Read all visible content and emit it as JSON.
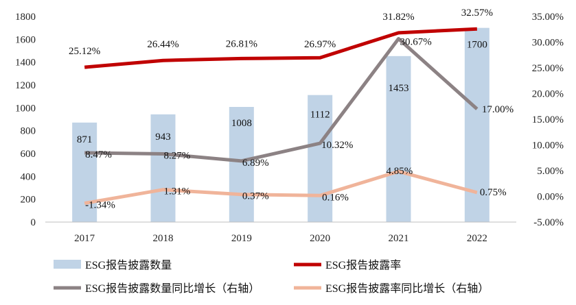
{
  "chart_data": {
    "type": "bar",
    "categories": [
      "2017",
      "2018",
      "2019",
      "2020",
      "2021",
      "2022"
    ],
    "series": [
      {
        "name": "ESG报告披露数量",
        "type": "bar",
        "axis": "left",
        "values": [
          871,
          943,
          1008,
          1112,
          1453,
          1700
        ],
        "labels": [
          "871",
          "943",
          "1008",
          "1112",
          "1453",
          "1700"
        ],
        "color": "#c0d3e6"
      },
      {
        "name": "ESG报告披露率",
        "type": "line",
        "axis": "right",
        "values": [
          25.12,
          26.44,
          26.81,
          26.97,
          31.82,
          32.57
        ],
        "labels": [
          "25.12%",
          "26.44%",
          "26.81%",
          "26.97%",
          "31.82%",
          "32.57%"
        ],
        "color": "#c00000"
      },
      {
        "name": "ESG报告披露数量同比增长（右轴）",
        "type": "line",
        "axis": "right",
        "values": [
          8.47,
          8.27,
          6.89,
          10.32,
          30.67,
          17.0
        ],
        "labels": [
          "8.47%",
          "8.27%",
          "6.89%",
          "10.32%",
          "30.67%",
          "17.00%"
        ],
        "color": "#8c8284"
      },
      {
        "name": "ESG报告披露率同比增长（右轴）",
        "type": "line",
        "axis": "right",
        "values": [
          -1.34,
          1.31,
          0.37,
          0.16,
          4.85,
          0.75
        ],
        "labels": [
          "-1.34%",
          "1.31%",
          "0.37%",
          "0.16%",
          "4.85%",
          "0.75%"
        ],
        "color": "#f0b49a"
      }
    ],
    "y_left": {
      "min": 0,
      "max": 1800,
      "ticks": [
        "0",
        "200",
        "400",
        "600",
        "800",
        "1000",
        "1200",
        "1400",
        "1600",
        "1800"
      ]
    },
    "y_right": {
      "min": -5,
      "max": 35,
      "ticks": [
        "-5.00%",
        "0.00%",
        "5.00%",
        "10.00%",
        "15.00%",
        "20.00%",
        "25.00%",
        "30.00%",
        "35.00%"
      ]
    },
    "grid": false,
    "legend_position": "bottom"
  }
}
